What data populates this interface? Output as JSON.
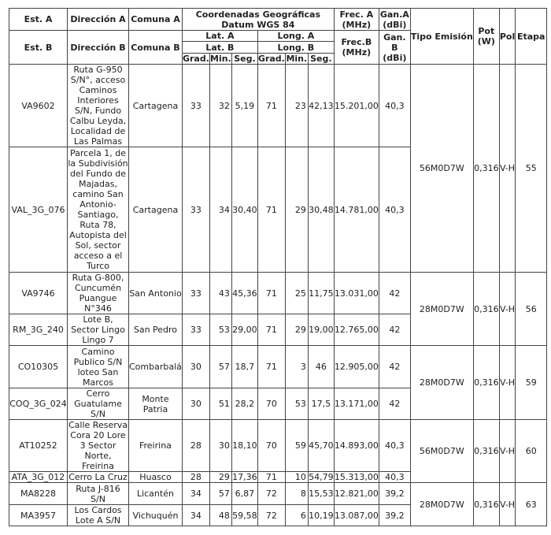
{
  "header": {
    "est_a": "Est. A",
    "est_b": "Est. B",
    "dir_a": "Dirección A",
    "dir_b": "Dirección B",
    "comuna_a": "Comuna A",
    "comuna_b": "Comuna B",
    "coords": "Coordenadas Geográficas Datum WGS 84",
    "lat_a": "Lat. A",
    "long_a": "Long. A",
    "lat_b": "Lat. B",
    "long_b": "Long. B",
    "grad": "Grad.",
    "min": "Min.",
    "seg": "Seg.",
    "frec_a": "Frec. A (MHz)",
    "gan_a": "Gan.A (dBi)",
    "frec_b": "Frec.B (MHz)",
    "gan_b": "Gan. B (dBi)",
    "tipo": "Tipo Emisión",
    "pot": "Pot (W)",
    "pol": "Pol",
    "etapa": "Etapa"
  },
  "rows": [
    {
      "est": "VA9602",
      "dir": "Ruta G-950 S/N°, acceso Caminos Interiores S/N, Fundo Calbu Leyda, Localidad de Las Palmas",
      "comuna": "Cartagena",
      "lat_g": "33",
      "lat_m": "32",
      "lat_s": "5,19",
      "lon_g": "71",
      "lon_m": "23",
      "lon_s": "42,13",
      "frec": "15.201,00",
      "gan": "40,3"
    },
    {
      "est": "VAL_3G_076",
      "dir": "Parcela 1, de la Subdivisión del Fundo de Majadas, camino San Antonio-Santiago, Ruta 78, Autopista del Sol, sector acceso a el Turco",
      "comuna": "Cartagena",
      "lat_g": "33",
      "lat_m": "34",
      "lat_s": "30,40",
      "lon_g": "71",
      "lon_m": "29",
      "lon_s": "30,48",
      "frec": "14.781,00",
      "gan": "40,3"
    },
    {
      "est": "VA9746",
      "dir": "Ruta G-800, Cuncumén Puangue N°346",
      "comuna": "San Antonio",
      "lat_g": "33",
      "lat_m": "43",
      "lat_s": "45,36",
      "lon_g": "71",
      "lon_m": "25",
      "lon_s": "11,75",
      "frec": "13.031,00",
      "gan": "42"
    },
    {
      "est": "RM_3G_240",
      "dir": "Lote B, Sector Lingo Lingo 7",
      "comuna": "San Pedro",
      "lat_g": "33",
      "lat_m": "53",
      "lat_s": "29,00",
      "lon_g": "71",
      "lon_m": "29",
      "lon_s": "19,00",
      "frec": "12.765,00",
      "gan": "42"
    },
    {
      "est": "CO10305",
      "dir": "Camino Publico S/N loteo San Marcos",
      "comuna": "Combarbalá",
      "lat_g": "30",
      "lat_m": "57",
      "lat_s": "18,7",
      "lon_g": "71",
      "lon_m": "3",
      "lon_s": "46",
      "frec": "12.905,00",
      "gan": "42"
    },
    {
      "est": "COQ_3G_024",
      "dir": "Cerro Guatulame S/N",
      "comuna": "Monte Patria",
      "lat_g": "30",
      "lat_m": "51",
      "lat_s": "28,2",
      "lon_g": "70",
      "lon_m": "53",
      "lon_s": "17,5",
      "frec": "13.171,00",
      "gan": "42"
    },
    {
      "est": "AT10252",
      "dir": "Calle Reserva Cora 20 Lore 3 Sector Norte, Freirina",
      "comuna": "Freirina",
      "lat_g": "28",
      "lat_m": "30",
      "lat_s": "18,10",
      "lon_g": "70",
      "lon_m": "59",
      "lon_s": "45,70",
      "frec": "14.893,00",
      "gan": "40,3"
    },
    {
      "est": "ATA_3G_012",
      "dir": "Cerro La Cruz",
      "comuna": "Huasco",
      "lat_g": "28",
      "lat_m": "29",
      "lat_s": "17,36",
      "lon_g": "71",
      "lon_m": "10",
      "lon_s": "54,79",
      "frec": "15.313,00",
      "gan": "40,3"
    },
    {
      "est": "MA8228",
      "dir": "Ruta J-816 S/N",
      "comuna": "Licantén",
      "lat_g": "34",
      "lat_m": "57",
      "lat_s": "6,87",
      "lon_g": "72",
      "lon_m": "8",
      "lon_s": "15,53",
      "frec": "12.821,00",
      "gan": "39,2"
    },
    {
      "est": "MA3957",
      "dir": "Los Cardos Lote A S/N",
      "comuna": "Vichuquén",
      "lat_g": "34",
      "lat_m": "48",
      "lat_s": "59,58",
      "lon_g": "72",
      "lon_m": "6",
      "lon_s": "10,19",
      "frec": "13.087,00",
      "gan": "39,2"
    }
  ],
  "groups": [
    {
      "tipo": "56M0D7W",
      "pot": "0,316",
      "pol": "V-H",
      "etapa": "55"
    },
    {
      "tipo": "28M0D7W",
      "pot": "0,316",
      "pol": "V-H",
      "etapa": "56"
    },
    {
      "tipo": "28M0D7W",
      "pot": "0,316",
      "pol": "V-H",
      "etapa": "59"
    },
    {
      "tipo": "56M0D7W",
      "pot": "0,316",
      "pol": "V-H",
      "etapa": "60"
    },
    {
      "tipo": "28M0D7W",
      "pot": "0,316",
      "pol": "V-H",
      "etapa": "63"
    }
  ]
}
